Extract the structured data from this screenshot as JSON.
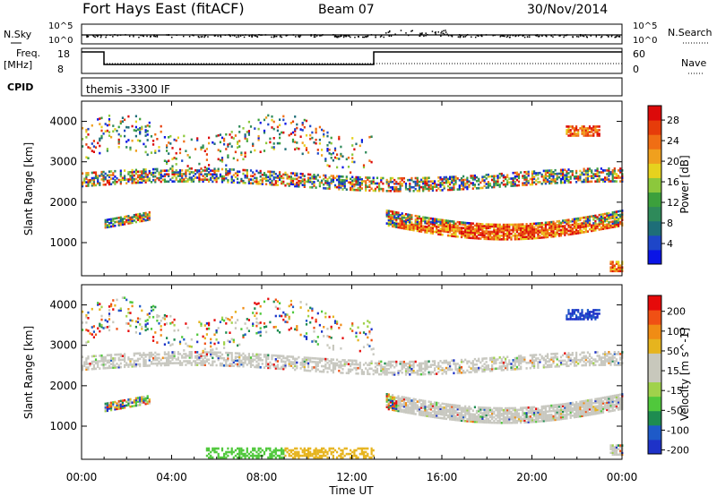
{
  "header": {
    "station": "Fort Hays East (fitACF)",
    "beam": "Beam 07",
    "date": "30/Nov/2014"
  },
  "top_panel": {
    "left_label_nsky": "N.Sky",
    "left_label_freq_line1": "Freq.",
    "left_label_freq_line2": "[MHz]",
    "left_label_cpid": "CPID",
    "right_label_nsearch": "N.Search",
    "right_label_nave": "Nave",
    "nsky_ticks": [
      "10^5",
      "10^0"
    ],
    "nsearch_ticks": [
      "10^5",
      "10^0"
    ],
    "freq_ticks": [
      "18",
      "8"
    ],
    "nave_ticks": [
      "60",
      "0"
    ],
    "cpid_text": "themis -3300 IF"
  },
  "colors": {
    "power_scale": [
      "#0a14e6",
      "#1e46c8",
      "#1e6e78",
      "#2e8a5a",
      "#3ca03c",
      "#8cc83c",
      "#e6d21e",
      "#f0a01e",
      "#f06e14",
      "#e63c0a",
      "#dc0a0a"
    ],
    "velocity_scale": [
      "#1e32c8",
      "#1e5ac8",
      "#1e8c50",
      "#50c83c",
      "#a0d24b",
      "#c8c8bc",
      "#c8c8bc",
      "#e6b41e",
      "#f08c14",
      "#f05014",
      "#e60a0a"
    ],
    "groundscatter": "#c8c8c0"
  },
  "chart_data": [
    {
      "type": "heatmap",
      "name": "power",
      "ylabel": "Slant Range [km]",
      "yticks": [
        "1000",
        "2000",
        "3000",
        "4000"
      ],
      "ylim": [
        180,
        4500
      ],
      "xlim": [
        0,
        24
      ],
      "colorbar_label": "Power [dB]",
      "colorbar_ticks": [
        "4",
        "8",
        "12",
        "16",
        "20",
        "24",
        "28"
      ]
    },
    {
      "type": "heatmap",
      "name": "velocity",
      "ylabel": "Slant Range [km]",
      "yticks": [
        "1000",
        "2000",
        "3000",
        "4000"
      ],
      "ylim": [
        180,
        4500
      ],
      "xlim": [
        0,
        24
      ],
      "colorbar_label": "Velocity [m s^-1]",
      "colorbar_ticks": [
        "200",
        "100",
        "50",
        "15",
        "-15",
        "-50",
        "-100",
        "-200"
      ]
    }
  ],
  "xaxis": {
    "ticks": [
      "00:00",
      "04:00",
      "08:00",
      "12:00",
      "16:00",
      "20:00",
      "00:00"
    ],
    "label": "Time UT"
  }
}
